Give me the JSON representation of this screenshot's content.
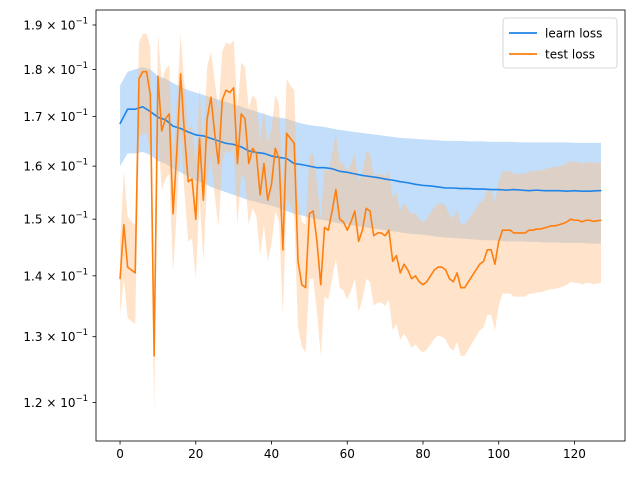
{
  "chart_data": {
    "type": "line",
    "title": "",
    "xlabel": "",
    "ylabel": "",
    "xlim": [
      -6.35,
      133.35
    ],
    "ylim": [
      0.1145,
      0.1935
    ],
    "yscale": "log",
    "xticks": [
      0,
      20,
      40,
      60,
      80,
      100,
      120
    ],
    "xtick_labels": [
      "0",
      "20",
      "40",
      "60",
      "80",
      "100",
      "120"
    ],
    "yticks": [
      0.12,
      0.13,
      0.14,
      0.15,
      0.16,
      0.17,
      0.18,
      0.19
    ],
    "ytick_labels": [
      {
        "mant": "1.2",
        "exp": "−1"
      },
      {
        "mant": "1.3",
        "exp": "−1"
      },
      {
        "mant": "1.4",
        "exp": "−1"
      },
      {
        "mant": "1.5",
        "exp": "−1"
      },
      {
        "mant": "1.6",
        "exp": "−1"
      },
      {
        "mant": "1.7",
        "exp": "−1"
      },
      {
        "mant": "1.8",
        "exp": "−1"
      },
      {
        "mant": "1.9",
        "exp": "−1"
      }
    ],
    "tick_base": "10",
    "grid": false,
    "legend_position": "upper right",
    "series": [
      {
        "name": "learn loss",
        "color": "#1f77b4",
        "line_color": "#1f84e8",
        "band_color": "#8fc3f6",
        "x": [
          0,
          2,
          4,
          6,
          8,
          10,
          12,
          14,
          16,
          18,
          20,
          22,
          24,
          26,
          28,
          30,
          32,
          34,
          36,
          38,
          40,
          42,
          44,
          46,
          48,
          50,
          52,
          54,
          56,
          58,
          60,
          62,
          64,
          66,
          68,
          70,
          72,
          74,
          76,
          78,
          80,
          82,
          84,
          86,
          88,
          90,
          92,
          94,
          96,
          98,
          100,
          102,
          104,
          106,
          108,
          110,
          112,
          114,
          116,
          118,
          120,
          122,
          124,
          126,
          127
        ],
        "y": [
          0.1685,
          0.1715,
          0.1715,
          0.172,
          0.171,
          0.1698,
          0.1693,
          0.168,
          0.1675,
          0.1668,
          0.1662,
          0.166,
          0.1655,
          0.165,
          0.1645,
          0.1643,
          0.1638,
          0.163,
          0.1627,
          0.1625,
          0.162,
          0.1617,
          0.1615,
          0.1605,
          0.1603,
          0.16,
          0.1597,
          0.1597,
          0.1595,
          0.159,
          0.1588,
          0.1585,
          0.1582,
          0.158,
          0.1578,
          0.1575,
          0.1573,
          0.157,
          0.1568,
          0.1565,
          0.1563,
          0.1562,
          0.156,
          0.1558,
          0.1558,
          0.1557,
          0.1557,
          0.1556,
          0.1556,
          0.1555,
          0.1555,
          0.1554,
          0.1555,
          0.1554,
          0.1553,
          0.1554,
          0.1553,
          0.1553,
          0.1553,
          0.1552,
          0.1553,
          0.1552,
          0.1552,
          0.1553,
          0.1553
        ],
        "lower": [
          0.16,
          0.1625,
          0.1625,
          0.1628,
          0.1622,
          0.161,
          0.1605,
          0.1595,
          0.1588,
          0.158,
          0.1572,
          0.1568,
          0.156,
          0.1555,
          0.155,
          0.1545,
          0.154,
          0.1535,
          0.1532,
          0.1528,
          0.1525,
          0.152,
          0.1515,
          0.151,
          0.1507,
          0.1503,
          0.15,
          0.1498,
          0.1495,
          0.1492,
          0.149,
          0.1488,
          0.1486,
          0.1484,
          0.1482,
          0.148,
          0.1478,
          0.1476,
          0.1474,
          0.1473,
          0.1472,
          0.147,
          0.1468,
          0.1467,
          0.1466,
          0.1465,
          0.1464,
          0.1463,
          0.1462,
          0.1462,
          0.1461,
          0.146,
          0.146,
          0.146,
          0.1459,
          0.1459,
          0.1458,
          0.1458,
          0.1458,
          0.1457,
          0.1457,
          0.1457,
          0.1456,
          0.1456,
          0.1456
        ],
        "upper": [
          0.1765,
          0.1795,
          0.18,
          0.1805,
          0.18,
          0.1785,
          0.178,
          0.177,
          0.1762,
          0.1755,
          0.175,
          0.1745,
          0.174,
          0.1735,
          0.173,
          0.1725,
          0.172,
          0.1715,
          0.171,
          0.1705,
          0.17,
          0.1697,
          0.1695,
          0.169,
          0.1685,
          0.1682,
          0.168,
          0.1678,
          0.1675,
          0.1672,
          0.167,
          0.1668,
          0.1666,
          0.1664,
          0.1662,
          0.166,
          0.1658,
          0.1656,
          0.1655,
          0.1654,
          0.1653,
          0.1652,
          0.1651,
          0.165,
          0.165,
          0.165,
          0.1649,
          0.1649,
          0.1649,
          0.1648,
          0.1648,
          0.1648,
          0.1648,
          0.1647,
          0.1647,
          0.1647,
          0.1647,
          0.1647,
          0.1647,
          0.1647,
          0.1646,
          0.1646,
          0.1646,
          0.1646,
          0.1646
        ]
      },
      {
        "name": "test loss",
        "color": "#ff7f0e",
        "line_color": "#ff7f0e",
        "band_color": "#ffc08a",
        "x": [
          0,
          1,
          2,
          3,
          4,
          5,
          6,
          7,
          8,
          9,
          10,
          11,
          12,
          13,
          14,
          15,
          16,
          17,
          18,
          19,
          20,
          21,
          22,
          23,
          24,
          25,
          26,
          27,
          28,
          29,
          30,
          31,
          32,
          33,
          34,
          35,
          36,
          37,
          38,
          39,
          40,
          41,
          42,
          43,
          44,
          45,
          46,
          47,
          48,
          49,
          50,
          51,
          52,
          53,
          54,
          55,
          56,
          57,
          58,
          59,
          60,
          61,
          62,
          63,
          64,
          65,
          66,
          67,
          68,
          69,
          70,
          71,
          72,
          73,
          74,
          75,
          76,
          77,
          78,
          79,
          80,
          81,
          82,
          83,
          84,
          85,
          86,
          87,
          88,
          89,
          90,
          91,
          92,
          93,
          94,
          95,
          96,
          97,
          98,
          99,
          100,
          101,
          102,
          103,
          104,
          105,
          106,
          107,
          108,
          109,
          110,
          111,
          112,
          113,
          114,
          115,
          116,
          117,
          118,
          119,
          120,
          121,
          122,
          123,
          124,
          125,
          126,
          127
        ],
        "y": [
          0.1395,
          0.149,
          0.1415,
          0.141,
          0.1405,
          0.178,
          0.1795,
          0.1795,
          0.1745,
          0.127,
          0.1785,
          0.167,
          0.1695,
          0.1705,
          0.151,
          0.163,
          0.179,
          0.1665,
          0.157,
          0.1575,
          0.15,
          0.1655,
          0.1535,
          0.1695,
          0.174,
          0.1665,
          0.1605,
          0.1735,
          0.1755,
          0.175,
          0.176,
          0.1605,
          0.1705,
          0.1695,
          0.1605,
          0.1635,
          0.1625,
          0.1545,
          0.1605,
          0.1535,
          0.1565,
          0.1635,
          0.1615,
          0.1445,
          0.1665,
          0.1655,
          0.1645,
          0.1425,
          0.1385,
          0.138,
          0.151,
          0.1515,
          0.146,
          0.1385,
          0.1485,
          0.148,
          0.1515,
          0.1555,
          0.15,
          0.1495,
          0.148,
          0.1495,
          0.1515,
          0.146,
          0.148,
          0.152,
          0.1515,
          0.147,
          0.1475,
          0.1475,
          0.147,
          0.148,
          0.1425,
          0.1435,
          0.1405,
          0.142,
          0.141,
          0.1395,
          0.14,
          0.139,
          0.1385,
          0.139,
          0.14,
          0.141,
          0.1415,
          0.1415,
          0.141,
          0.1395,
          0.139,
          0.1405,
          0.138,
          0.138,
          0.139,
          0.14,
          0.141,
          0.142,
          0.1425,
          0.1445,
          0.1445,
          0.142,
          0.146,
          0.148,
          0.148,
          0.148,
          0.1475,
          0.1475,
          0.1475,
          0.1475,
          0.148,
          0.148,
          0.1482,
          0.1482,
          0.1484,
          0.1486,
          0.1488,
          0.1488,
          0.149,
          0.1492,
          0.1495,
          0.15,
          0.1498,
          0.1498,
          0.1495,
          0.1498,
          0.1498,
          0.1496,
          0.1497,
          0.1498
        ],
        "lower": [
          0.1335,
          0.1395,
          0.133,
          0.1325,
          0.132,
          0.1655,
          0.1665,
          0.1665,
          0.1625,
          0.1185,
          0.1665,
          0.1555,
          0.1575,
          0.1585,
          0.1405,
          0.152,
          0.167,
          0.155,
          0.146,
          0.1465,
          0.1395,
          0.154,
          0.1425,
          0.1575,
          0.162,
          0.1545,
          0.1485,
          0.161,
          0.163,
          0.1625,
          0.1635,
          0.149,
          0.1585,
          0.1575,
          0.149,
          0.152,
          0.1505,
          0.1435,
          0.149,
          0.1425,
          0.1455,
          0.1515,
          0.1495,
          0.1335,
          0.154,
          0.1525,
          0.1505,
          0.1315,
          0.1285,
          0.1275,
          0.1395,
          0.1395,
          0.134,
          0.127,
          0.1365,
          0.136,
          0.1395,
          0.143,
          0.138,
          0.1375,
          0.136,
          0.1375,
          0.1395,
          0.134,
          0.136,
          0.1395,
          0.139,
          0.135,
          0.1355,
          0.1355,
          0.135,
          0.136,
          0.131,
          0.132,
          0.1295,
          0.1305,
          0.1295,
          0.1282,
          0.1288,
          0.128,
          0.1275,
          0.128,
          0.1288,
          0.1297,
          0.1302,
          0.13,
          0.1296,
          0.1283,
          0.1278,
          0.1292,
          0.127,
          0.127,
          0.128,
          0.129,
          0.13,
          0.131,
          0.1315,
          0.1335,
          0.1335,
          0.131,
          0.135,
          0.137,
          0.137,
          0.137,
          0.1365,
          0.1365,
          0.1365,
          0.1365,
          0.137,
          0.137,
          0.1372,
          0.1372,
          0.1374,
          0.1376,
          0.1378,
          0.1378,
          0.138,
          0.1382,
          0.1385,
          0.139,
          0.1388,
          0.1388,
          0.1385,
          0.1388,
          0.1388,
          0.1386,
          0.1387,
          0.1388
        ],
        "upper": [
          0.1455,
          0.159,
          0.1505,
          0.1495,
          0.149,
          0.186,
          0.188,
          0.188,
          0.185,
          0.1355,
          0.188,
          0.1775,
          0.18,
          0.181,
          0.161,
          0.173,
          0.188,
          0.1765,
          0.1675,
          0.168,
          0.1605,
          0.176,
          0.164,
          0.1805,
          0.184,
          0.1775,
          0.1715,
          0.184,
          0.186,
          0.1855,
          0.1865,
          0.1715,
          0.1815,
          0.1805,
          0.1715,
          0.1745,
          0.1735,
          0.165,
          0.1715,
          0.1645,
          0.1675,
          0.1745,
          0.1725,
          0.1555,
          0.178,
          0.1765,
          0.1755,
          0.1535,
          0.1495,
          0.149,
          0.162,
          0.1625,
          0.157,
          0.15,
          0.1595,
          0.159,
          0.1625,
          0.1665,
          0.161,
          0.1605,
          0.159,
          0.1605,
          0.1625,
          0.157,
          0.159,
          0.163,
          0.1625,
          0.158,
          0.1585,
          0.1585,
          0.158,
          0.159,
          0.154,
          0.155,
          0.1515,
          0.153,
          0.152,
          0.1508,
          0.1512,
          0.15,
          0.1495,
          0.15,
          0.1512,
          0.1523,
          0.1528,
          0.153,
          0.1524,
          0.1507,
          0.1502,
          0.1518,
          0.149,
          0.149,
          0.15,
          0.151,
          0.152,
          0.153,
          0.1535,
          0.1555,
          0.1555,
          0.153,
          0.157,
          0.159,
          0.159,
          0.159,
          0.1585,
          0.1585,
          0.1585,
          0.1585,
          0.159,
          0.159,
          0.1592,
          0.1592,
          0.1594,
          0.1596,
          0.1598,
          0.1598,
          0.16,
          0.1602,
          0.1605,
          0.161,
          0.1608,
          0.1608,
          0.1605,
          0.1608,
          0.1608,
          0.1606,
          0.1607,
          0.1608
        ]
      }
    ]
  }
}
